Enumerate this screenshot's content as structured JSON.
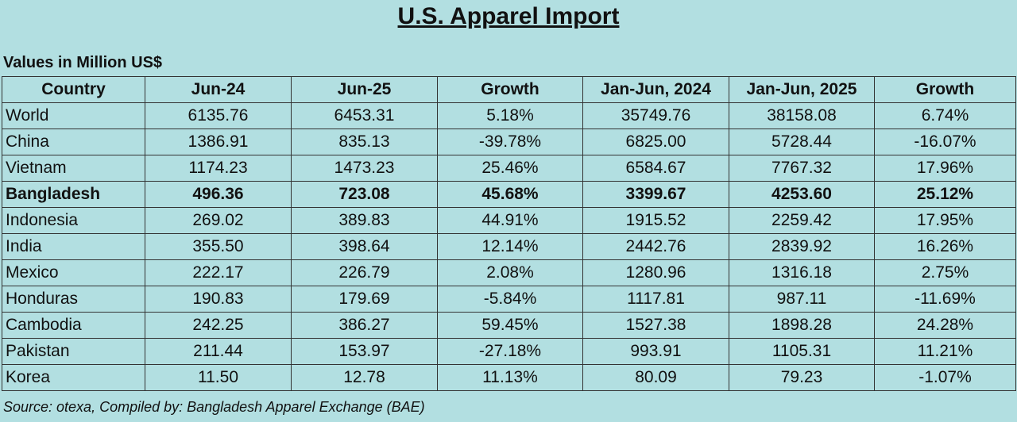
{
  "header": {
    "title": "U.S. Apparel Import",
    "subtitle": "Values in Million US$"
  },
  "table": {
    "columns": [
      "Country",
      "Jun-24",
      "Jun-25",
      "Growth",
      "Jan-Jun, 2024",
      "Jan-Jun, 2025",
      "Growth"
    ],
    "rows": [
      [
        "World",
        "6135.76",
        "6453.31",
        "5.18%",
        "35749.76",
        "38158.08",
        "6.74%"
      ],
      [
        "China",
        "1386.91",
        "835.13",
        "-39.78%",
        "6825.00",
        "5728.44",
        "-16.07%"
      ],
      [
        "Vietnam",
        "1174.23",
        "1473.23",
        "25.46%",
        "6584.67",
        "7767.32",
        "17.96%"
      ],
      [
        "Bangladesh",
        "496.36",
        "723.08",
        "45.68%",
        "3399.67",
        "4253.60",
        "25.12%"
      ],
      [
        "Indonesia",
        "269.02",
        "389.83",
        "44.91%",
        "1915.52",
        "2259.42",
        "17.95%"
      ],
      [
        "India",
        "355.50",
        "398.64",
        "12.14%",
        "2442.76",
        "2839.92",
        "16.26%"
      ],
      [
        "Mexico",
        "222.17",
        "226.79",
        "2.08%",
        "1280.96",
        "1316.18",
        "2.75%"
      ],
      [
        "Honduras",
        "190.83",
        "179.69",
        "-5.84%",
        "1117.81",
        "987.11",
        "-11.69%"
      ],
      [
        "Cambodia",
        "242.25",
        "386.27",
        "59.45%",
        "1527.38",
        "1898.28",
        "24.28%"
      ],
      [
        "Pakistan",
        "211.44",
        "153.97",
        "-27.18%",
        "993.91",
        "1105.31",
        "11.21%"
      ],
      [
        "Korea",
        "11.50",
        "12.78",
        "11.13%",
        "80.09",
        "79.23",
        "-1.07%"
      ]
    ],
    "bold_rows": [
      3
    ]
  },
  "footer": {
    "source": "Source: otexa, Compiled by: Bangladesh Apparel Exchange (BAE)"
  }
}
